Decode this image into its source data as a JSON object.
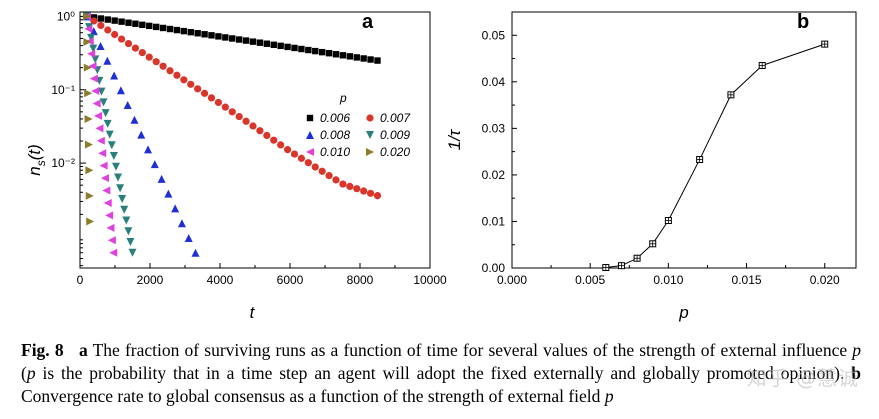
{
  "chart_data": [
    {
      "type": "scatter",
      "panel_label": "a",
      "xlabel": "t",
      "ylabel": "n_s(t)",
      "ylabel_main": "n",
      "ylabel_sub": "s",
      "ylabel_tail": "(t)",
      "xlim": [
        0,
        10000
      ],
      "ylim_log10": [
        -3.43,
        0.06
      ],
      "yscale": "log",
      "x_ticks": [
        0,
        2000,
        4000,
        6000,
        8000,
        10000
      ],
      "x_tick_labels": [
        "0",
        "2000",
        "4000",
        "6000",
        "8000",
        "10000"
      ],
      "y_ticks": [
        1,
        0.1,
        0.01
      ],
      "y_tick_labels": [
        "10⁰",
        "10⁻¹",
        "10⁻²"
      ],
      "grid": false,
      "legend_title": "p",
      "legend_position": "right-center",
      "series": [
        {
          "name": "0.006",
          "marker": "square",
          "color": "#000000",
          "x": [
            200,
            8500
          ],
          "y": [
            1.0,
            0.25
          ]
        },
        {
          "name": "0.007",
          "marker": "circle",
          "color": "#d9352b",
          "x": [
            200,
            4000,
            6000,
            7500,
            8500
          ],
          "y": [
            1.0,
            0.065,
            0.0145,
            0.0052,
            0.0036
          ]
        },
        {
          "name": "0.008",
          "marker": "triangle-up",
          "color": "#1f2fd6",
          "x": [
            200,
            3300
          ],
          "y": [
            1.0,
            0.0006
          ]
        },
        {
          "name": "0.009",
          "marker": "triangle-down",
          "color": "#2b7f7a",
          "x": [
            200,
            1500
          ],
          "y": [
            1.0,
            0.0006
          ]
        },
        {
          "name": "0.010",
          "marker": "triangle-left",
          "color": "#e040e0",
          "x": [
            200,
            950
          ],
          "y": [
            1.0,
            0.0006
          ]
        },
        {
          "name": "0.020",
          "marker": "triangle-right",
          "color": "#8a7d2e",
          "x": [
            200,
            290
          ],
          "y": [
            1.0,
            0.0016
          ]
        }
      ]
    },
    {
      "type": "line",
      "panel_label": "b",
      "xlabel": "p",
      "ylabel": "1/τ",
      "xlim": [
        0.0,
        0.022
      ],
      "ylim": [
        0.0,
        0.055
      ],
      "x_ticks": [
        0.0,
        0.005,
        0.01,
        0.015,
        0.02
      ],
      "x_tick_labels": [
        "0.000",
        "0.005",
        "0.010",
        "0.015",
        "0.020"
      ],
      "y_ticks": [
        0.0,
        0.01,
        0.02,
        0.03,
        0.04,
        0.05
      ],
      "y_tick_labels": [
        "0.00",
        "0.01",
        "0.02",
        "0.03",
        "0.04",
        "0.05"
      ],
      "grid": false,
      "marker": "square-crossed",
      "x": [
        0.006,
        0.007,
        0.008,
        0.009,
        0.01,
        0.012,
        0.014,
        0.016,
        0.02
      ],
      "y": [
        0.0001,
        0.0005,
        0.0021,
        0.0052,
        0.0102,
        0.0233,
        0.0372,
        0.0435,
        0.0481
      ]
    }
  ],
  "caption": {
    "fig_label": "Fig. 8",
    "a_label": "a",
    "a_text_1": " The fraction of surviving runs as a function of time for several values of the strength of external influence ",
    "p_symbol": "p",
    "a_text_2": " (",
    "a_text_3": " is the probability that in a time step an agent will adopt the fixed externally and globally promoted opinion). ",
    "b_label": "b",
    "b_text": " Convergence rate to global consensus as a function of the strength of external field ",
    "watermark": "知乎 @慧诚"
  }
}
